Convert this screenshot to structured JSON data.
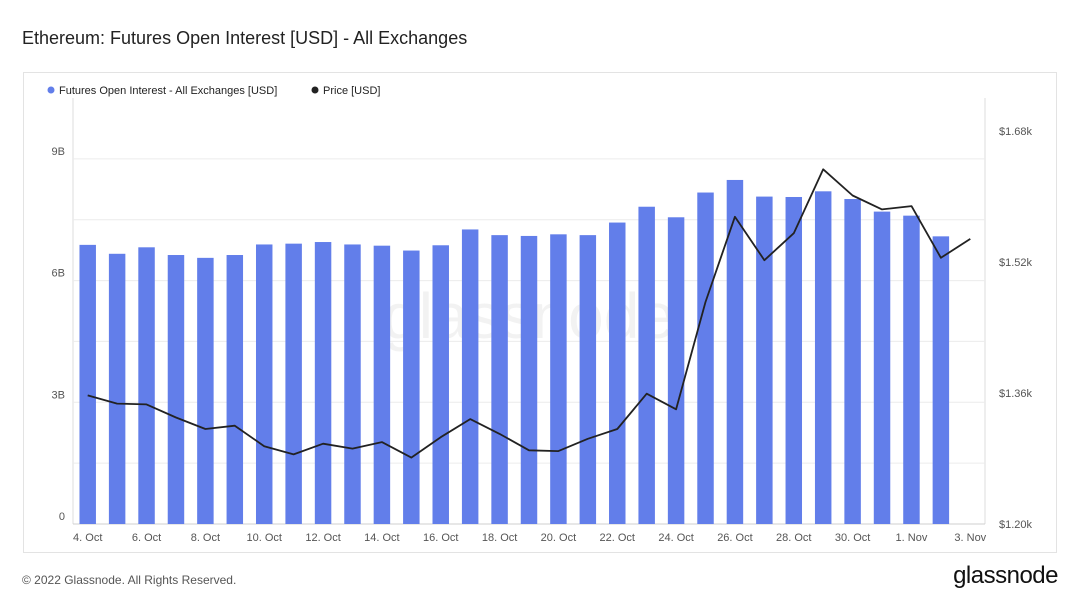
{
  "title": "Ethereum: Futures Open Interest [USD] - All Exchanges",
  "footer": {
    "copyright": "© 2022 Glassnode. All Rights Reserved.",
    "brand": "glassnode"
  },
  "watermark": "glassnode",
  "colors": {
    "bar": "#627eea",
    "price_line": "#222222",
    "grid": "#ececec"
  },
  "chart_data": {
    "type": "bar",
    "legend": [
      {
        "label": "Futures Open Interest - All Exchanges [USD]",
        "color": "#627eea"
      },
      {
        "label": "Price [USD]",
        "color": "#222222"
      }
    ],
    "legend_position": "top-left",
    "x_tick_labels": [
      "4. Oct",
      "6. Oct",
      "8. Oct",
      "10. Oct",
      "12. Oct",
      "14. Oct",
      "16. Oct",
      "18. Oct",
      "20. Oct",
      "22. Oct",
      "24. Oct",
      "26. Oct",
      "28. Oct",
      "30. Oct",
      "1. Nov",
      "3. Nov"
    ],
    "dates": [
      "4. Oct",
      "5. Oct",
      "6. Oct",
      "7. Oct",
      "8. Oct",
      "9. Oct",
      "10. Oct",
      "11. Oct",
      "12. Oct",
      "13. Oct",
      "14. Oct",
      "15. Oct",
      "16. Oct",
      "17. Oct",
      "18. Oct",
      "19. Oct",
      "20. Oct",
      "21. Oct",
      "22. Oct",
      "23. Oct",
      "24. Oct",
      "25. Oct",
      "26. Oct",
      "27. Oct",
      "28. Oct",
      "29. Oct",
      "30. Oct",
      "31. Oct",
      "1. Nov",
      "2. Nov",
      "3. Nov"
    ],
    "left_axis": {
      "ticks": [
        "0",
        "3B",
        "6B",
        "9B"
      ],
      "min": 0,
      "max": 10.5
    },
    "right_axis": {
      "ticks": [
        "$1.20k",
        "$1.36k",
        "$1.52k",
        "$1.68k"
      ],
      "min": 1.2,
      "max": 1.72
    },
    "grid": true,
    "series": [
      {
        "name": "Futures Open Interest - All Exchanges [USD]",
        "axis": "left",
        "unit": "B",
        "values": [
          6.88,
          6.66,
          6.82,
          6.63,
          6.56,
          6.63,
          6.89,
          6.91,
          6.95,
          6.89,
          6.86,
          6.74,
          6.87,
          7.26,
          7.12,
          7.1,
          7.14,
          7.12,
          7.43,
          7.82,
          7.56,
          8.17,
          8.48,
          8.07,
          8.06,
          8.2,
          8.01,
          7.7,
          7.6,
          7.09,
          null
        ]
      },
      {
        "name": "Price [USD]",
        "axis": "right",
        "unit": "k",
        "values": [
          1.357,
          1.347,
          1.346,
          1.33,
          1.316,
          1.32,
          1.295,
          1.285,
          1.298,
          1.292,
          1.3,
          1.281,
          1.306,
          1.328,
          1.31,
          1.29,
          1.289,
          1.304,
          1.316,
          1.359,
          1.34,
          1.471,
          1.575,
          1.522,
          1.555,
          1.633,
          1.601,
          1.584,
          1.588,
          1.525,
          1.548
        ]
      }
    ]
  }
}
